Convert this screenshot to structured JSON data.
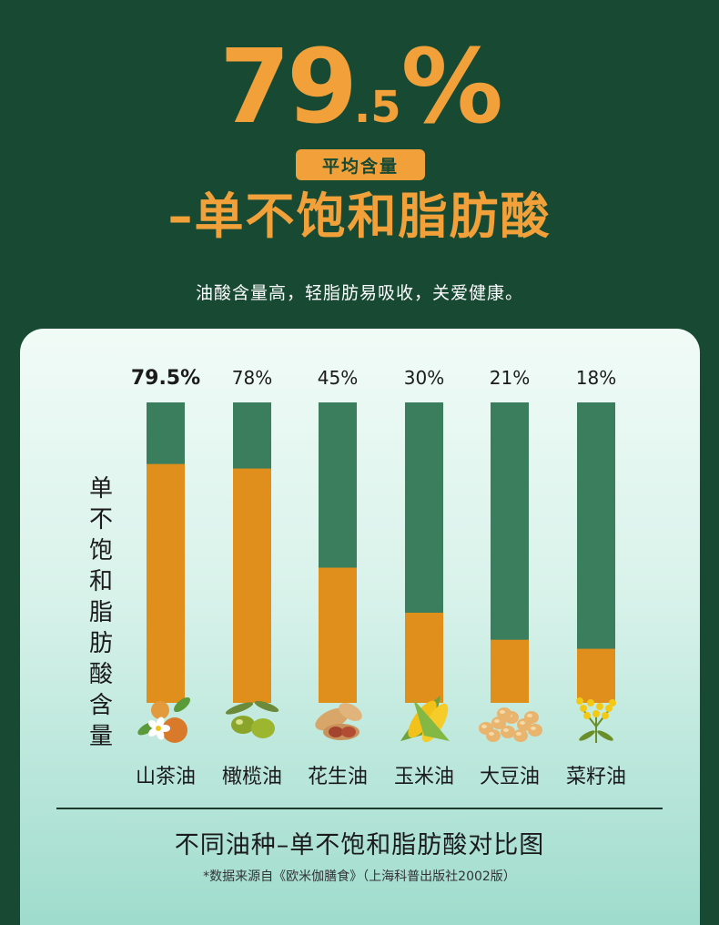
{
  "hero": {
    "value_main": "79",
    "value_decimal": ".5",
    "value_unit": "%",
    "badge": "平均含量",
    "headline": "–单不饱和脂肪酸",
    "subtitle": "油酸含量高，轻脂肪易吸收，关爱健康。"
  },
  "colors": {
    "background": "#184a33",
    "accent": "#f2a13a",
    "bar_fill": "#e08e1c",
    "bar_track": "#3b7e5e"
  },
  "chart_data": {
    "type": "bar",
    "title": "不同油种–单不饱和脂肪酸对比图",
    "ylabel": "单不饱和脂肪酸含量",
    "categories": [
      "山茶油",
      "橄榄油",
      "花生油",
      "玉米油",
      "大豆油",
      "菜籽油"
    ],
    "values": [
      79.5,
      78,
      45,
      30,
      21,
      18
    ],
    "value_labels": [
      "79.5%",
      "78%",
      "45%",
      "30%",
      "21%",
      "18%"
    ],
    "icons": [
      "camellia-icon",
      "olive-icon",
      "peanut-icon",
      "corn-icon",
      "soybean-icon",
      "rapeseed-icon"
    ],
    "ylim": [
      0,
      100
    ],
    "grid": false,
    "legend": "none"
  },
  "footer": {
    "source": "*数据来源自《欧米伽膳食》（上海科普出版社2002版）"
  }
}
